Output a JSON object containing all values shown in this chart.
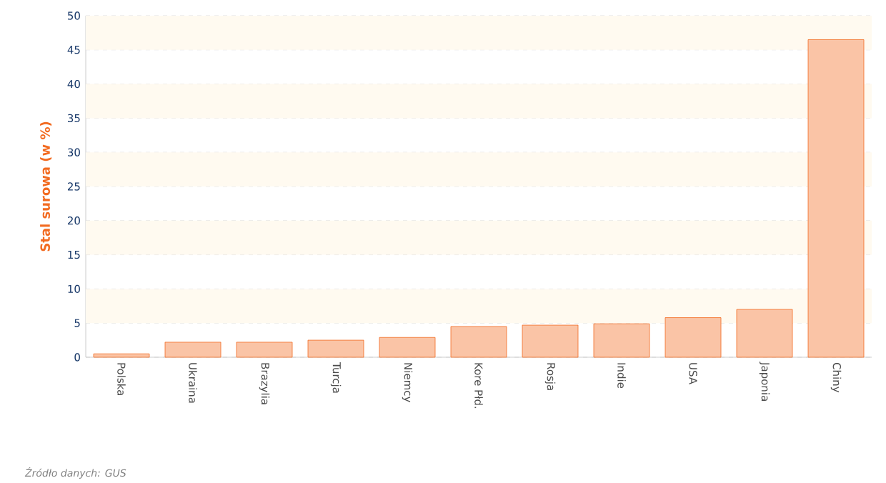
{
  "chart_data": {
    "type": "bar",
    "ylabel": "Stal surowa (w %)",
    "categories": [
      "Polska",
      "Ukraina",
      "Brazylia",
      "Turcja",
      "Niemcy",
      "Kore Płd.",
      "Rosja",
      "Indie",
      "USA",
      "Japonia",
      "Chiny"
    ],
    "values": [
      0.5,
      2.2,
      2.2,
      2.5,
      2.9,
      4.5,
      4.7,
      4.9,
      5.8,
      7.0,
      46.5
    ],
    "color": "#f26b21",
    "ylim": [
      0,
      50
    ],
    "yticks": [
      0,
      5,
      10,
      15,
      20,
      25,
      30,
      35,
      40,
      45,
      50
    ],
    "grid": "y",
    "bands": [
      {
        "axis": "y",
        "from": 5,
        "to": 10,
        "color": "#fffaf0"
      },
      {
        "axis": "y",
        "from": 15,
        "to": 20,
        "color": "#fffaf0"
      },
      {
        "axis": "y",
        "from": 25,
        "to": 30,
        "color": "#fffaf0"
      },
      {
        "axis": "y",
        "from": 35,
        "to": 40,
        "color": "#fffaf0"
      },
      {
        "axis": "y",
        "from": 45,
        "to": 50,
        "color": "#fffaf0"
      }
    ],
    "annotations": [
      "Źródło danych: GUS"
    ]
  }
}
